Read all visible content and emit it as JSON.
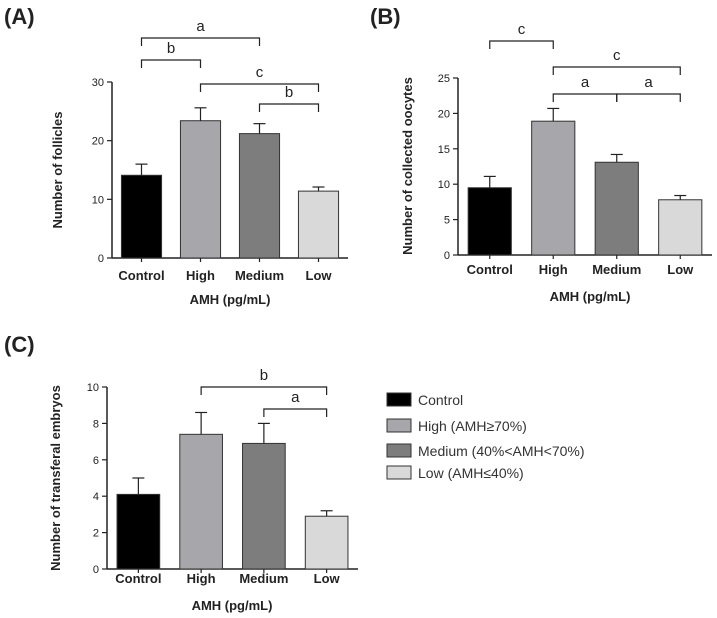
{
  "colors": {
    "Control": "#000000",
    "High": "#a6a6ab",
    "Medium": "#7d7d7d",
    "Low": "#d9d9d9",
    "edge": "#333333"
  },
  "legend": [
    {
      "key": "Control",
      "label": "Control"
    },
    {
      "key": "High",
      "label": "High (AMH≥70%)"
    },
    {
      "key": "Medium",
      "label": "Medium (40%<AMH<70%)"
    },
    {
      "key": "Low",
      "label": "Low (AMH≤40%)"
    }
  ],
  "chart_data": [
    {
      "panel": "(A)",
      "type": "bar",
      "categories": [
        "Control",
        "High",
        "Medium",
        "Low"
      ],
      "values": [
        14.1,
        23.4,
        21.2,
        11.4
      ],
      "errors": [
        1.9,
        2.2,
        1.7,
        0.7
      ],
      "xlabel": "AMH (pg/mL)",
      "ylabel": "Number of follicles",
      "ylim": [
        0,
        30
      ],
      "yticks": [
        0,
        10,
        20,
        30
      ],
      "significance": [
        {
          "label": "a",
          "from": "Control",
          "to": "Medium"
        },
        {
          "label": "b",
          "from": "Control",
          "to": "High"
        },
        {
          "label": "c",
          "from": "High",
          "to": "Low"
        },
        {
          "label": "b",
          "from": "Medium",
          "to": "Low"
        }
      ]
    },
    {
      "panel": "(B)",
      "type": "bar",
      "categories": [
        "Control",
        "High",
        "Medium",
        "Low"
      ],
      "values": [
        9.5,
        18.9,
        13.1,
        7.8
      ],
      "errors": [
        1.6,
        1.8,
        1.1,
        0.6
      ],
      "xlabel": "AMH (pg/mL)",
      "ylabel": "Number of collected oocytes",
      "ylim": [
        0,
        25
      ],
      "yticks": [
        0,
        5,
        10,
        15,
        20,
        25
      ],
      "significance": [
        {
          "label": "c",
          "from": "Control",
          "to": "High"
        },
        {
          "label": "c",
          "from": "High",
          "to": "Low"
        },
        {
          "label": "a",
          "from": "High",
          "to": "Medium"
        },
        {
          "label": "a",
          "from": "Medium",
          "to": "Low"
        }
      ]
    },
    {
      "panel": "(C)",
      "type": "bar",
      "categories": [
        "Control",
        "High",
        "Medium",
        "Low"
      ],
      "values": [
        4.1,
        7.4,
        6.9,
        2.9
      ],
      "errors": [
        0.9,
        1.2,
        1.1,
        0.3
      ],
      "xlabel": "AMH (pg/mL)",
      "ylabel": "Number of transferal embryos",
      "ylim": [
        0,
        10
      ],
      "yticks": [
        0,
        2,
        4,
        6,
        8,
        10
      ],
      "significance": [
        {
          "label": "b",
          "from": "High",
          "to": "Low"
        },
        {
          "label": "a",
          "from": "Medium",
          "to": "Low"
        }
      ]
    }
  ]
}
